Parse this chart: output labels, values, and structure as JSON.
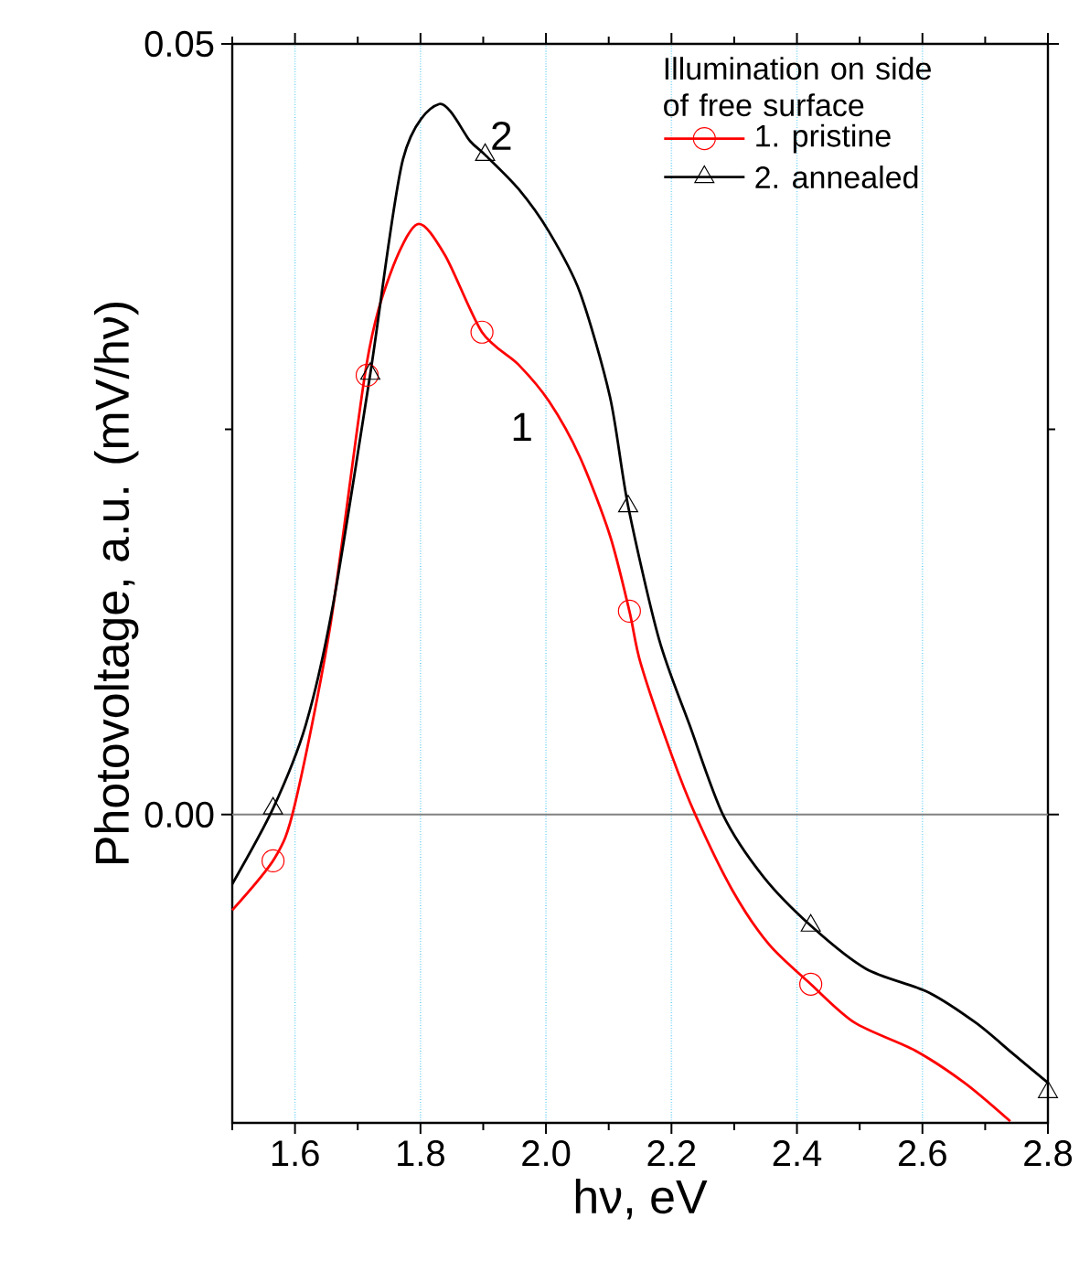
{
  "chart_data": {
    "type": "line",
    "xlabel": "hν, eV",
    "ylabel": "Photovoltage, a.u. (mV/hν)",
    "legend_title": "Illumination on side of free surface",
    "legend": "top right",
    "grid": "x",
    "xlim": [
      1.5,
      2.8
    ],
    "ylim": [
      -0.02,
      0.05
    ],
    "xticks": [
      1.6,
      1.8,
      {
        "value": 2.0,
        "label": "2.0"
      },
      2.2,
      2.4,
      2.6,
      2.8,
      {
        "value": 1.5,
        "label": null
      },
      {
        "value": 1.7,
        "label": null
      },
      {
        "value": 1.9,
        "label": null
      },
      {
        "value": 2.1,
        "label": null
      },
      {
        "value": 2.3,
        "label": null
      },
      {
        "value": 2.5,
        "label": null
      },
      {
        "value": 2.7,
        "label": null
      }
    ],
    "yticks": [
      {
        "value": 0,
        "label": "0.00"
      },
      0.05,
      {
        "value": 0.025,
        "label": null
      }
    ],
    "ref_lines": [
      {
        "axis": "y",
        "value": 0,
        "color": "#808080"
      }
    ],
    "annotations": [
      "2",
      "1"
    ],
    "series": [
      {
        "color": "#ff0000",
        "x": [
          1.5,
          1.568,
          1.6,
          1.656,
          1.714,
          1.752,
          1.795,
          1.839,
          1.898,
          1.956,
          2.005,
          2.054,
          2.102,
          2.133,
          2.151,
          2.2,
          2.238,
          2.297,
          2.355,
          2.422,
          2.492,
          2.588,
          2.667,
          2.74
        ],
        "values": [
          -0.0062,
          -0.0028,
          0.0007,
          0.0122,
          0.0292,
          0.0351,
          0.0383,
          0.0363,
          0.0313,
          0.0292,
          0.0268,
          0.0232,
          0.0181,
          0.0132,
          0.0098,
          0.0039,
          0.0,
          -0.0049,
          -0.0084,
          -0.011,
          -0.0135,
          -0.0153,
          -0.0174,
          -0.0199
        ]
      },
      {
        "color": "#000000",
        "x": [
          1.5,
          1.565,
          1.617,
          1.661,
          1.72,
          1.772,
          1.83,
          1.879,
          1.903,
          1.956,
          2.005,
          2.054,
          2.102,
          2.131,
          2.18,
          2.229,
          2.282,
          2.346,
          2.422,
          2.51,
          2.608,
          2.685,
          2.744,
          2.8
        ],
        "values": [
          -0.0045,
          0.0004,
          0.0058,
          0.0137,
          0.0286,
          0.0425,
          0.0461,
          0.0437,
          0.0428,
          0.0406,
          0.0378,
          0.0339,
          0.0271,
          0.02,
          0.0114,
          0.0058,
          0.0,
          -0.004,
          -0.0072,
          -0.01,
          -0.0115,
          -0.0135,
          -0.0155,
          -0.0174
        ]
      },
      {
        "type": "scatter",
        "name": "1. pristine",
        "color": "#ff0000",
        "marker": "circle",
        "x": [
          1.565,
          1.715,
          1.898,
          2.133,
          2.422
        ],
        "values": [
          -0.003,
          0.0285,
          0.0313,
          0.0132,
          -0.011
        ]
      },
      {
        "type": "scatter",
        "name": "2. annealed",
        "color": "#000000",
        "marker": "triangle",
        "x": [
          1.565,
          1.72,
          1.903,
          2.131,
          2.422,
          2.8
        ],
        "values": [
          0.0004,
          0.0286,
          0.0428,
          0.02,
          -0.0072,
          -0.018
        ]
      }
    ]
  }
}
